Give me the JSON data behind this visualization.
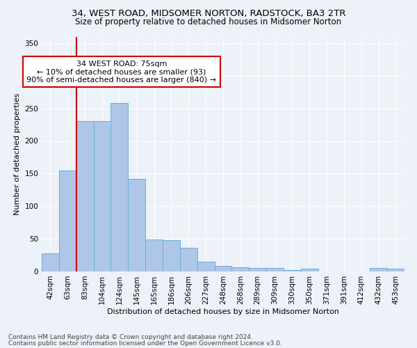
{
  "title": "34, WEST ROAD, MIDSOMER NORTON, RADSTOCK, BA3 2TR",
  "subtitle": "Size of property relative to detached houses in Midsomer Norton",
  "xlabel": "Distribution of detached houses by size in Midsomer Norton",
  "ylabel": "Number of detached properties",
  "categories": [
    "42sqm",
    "63sqm",
    "83sqm",
    "104sqm",
    "124sqm",
    "145sqm",
    "165sqm",
    "186sqm",
    "206sqm",
    "227sqm",
    "248sqm",
    "268sqm",
    "289sqm",
    "309sqm",
    "330sqm",
    "350sqm",
    "371sqm",
    "391sqm",
    "412sqm",
    "432sqm",
    "453sqm"
  ],
  "values": [
    28,
    155,
    230,
    230,
    258,
    142,
    49,
    48,
    36,
    15,
    9,
    6,
    5,
    5,
    2,
    4,
    0,
    0,
    0,
    5,
    4
  ],
  "bar_color": "#aec6e8",
  "bar_edge_color": "#6aafd6",
  "vline_x": 1.5,
  "vline_color": "#cc0000",
  "annotation_text_line1": "34 WEST ROAD: 75sqm",
  "annotation_text_line2": "← 10% of detached houses are smaller (93)",
  "annotation_text_line3": "90% of semi-detached houses are larger (840) →",
  "ylim": [
    0,
    360
  ],
  "yticks": [
    0,
    50,
    100,
    150,
    200,
    250,
    300,
    350
  ],
  "footer_line1": "Contains HM Land Registry data © Crown copyright and database right 2024.",
  "footer_line2": "Contains public sector information licensed under the Open Government Licence v3.0.",
  "bg_color": "#edf1f8",
  "plot_bg_color": "#edf1f8",
  "title_fontsize": 9.5,
  "subtitle_fontsize": 8.5,
  "axis_label_fontsize": 8,
  "tick_fontsize": 7.5,
  "footer_fontsize": 6.5,
  "annotation_fontsize": 8
}
